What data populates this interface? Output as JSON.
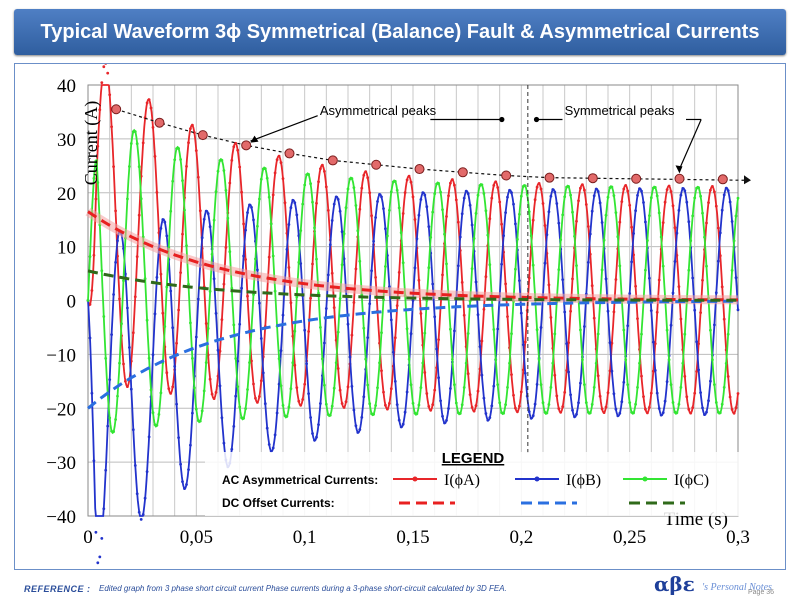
{
  "title": "Typical Waveform 3ϕ Symmetrical (Balance) Fault & Asymmetrical Currents",
  "footer": {
    "reference_label": "REFERENCE :",
    "reference_text": "Edited graph from 3 phase short circuit current Phase currents during a 3-phase short-circuit calculated by 3D FEA.",
    "logo_symbol": "αβε",
    "logo_text": "'s Personal Notes",
    "page_label": "Page 36"
  },
  "colors": {
    "phase_a": "#e8262a",
    "phase_b": "#2233cc",
    "phase_c": "#33e533",
    "dc_a": "#e82020",
    "dc_b": "#2a6fe0",
    "dc_c": "#2f6a1a"
  },
  "chart_data": {
    "type": "line",
    "title": "Typical Waveform 3ϕ Symmetrical (Balance) Fault & Asymmetrical Currents",
    "xlabel": "Time (s)",
    "ylabel": "Current (A)",
    "xlim": [
      0,
      0.3
    ],
    "ylim": [
      -40,
      40
    ],
    "grid": true,
    "x_ticks": [
      "0",
      "0,05",
      "0,1",
      "0,15",
      "0,2",
      "0,25",
      "0,3"
    ],
    "y_ticks": [
      "40",
      "30",
      "20",
      "10",
      "0",
      "−10",
      "−20",
      "−30",
      "−40"
    ],
    "signal": {
      "frequency_hz": 50,
      "symmetrical_amplitude": 21,
      "dc_offsets_initial": [
        16.5,
        -20,
        5.5
      ],
      "dc_decay_time_constant_s": 0.06,
      "ac_decay_extra_amplitude": 10,
      "ac_decay_time_constant_s": 0.055,
      "phase_shifts_deg": [
        0,
        -120,
        120
      ]
    },
    "series": [
      {
        "name": "I(ϕA)",
        "kind": "ac",
        "phase_index": 0
      },
      {
        "name": "I(ϕB)",
        "kind": "ac",
        "phase_index": 1
      },
      {
        "name": "I(ϕC)",
        "kind": "ac",
        "phase_index": 2
      },
      {
        "name": "DC offset A",
        "kind": "dc",
        "phase_index": 0
      },
      {
        "name": "DC offset B",
        "kind": "dc",
        "phase_index": 1
      },
      {
        "name": "DC offset C",
        "kind": "dc",
        "phase_index": 2
      }
    ],
    "asymmetrical_peaks": [
      {
        "t": 0.013,
        "value": 35.5
      },
      {
        "t": 0.033,
        "value": 33.0
      },
      {
        "t": 0.053,
        "value": 30.7
      },
      {
        "t": 0.073,
        "value": 28.8
      },
      {
        "t": 0.093,
        "value": 27.3
      },
      {
        "t": 0.113,
        "value": 26.0
      },
      {
        "t": 0.133,
        "value": 25.2
      },
      {
        "t": 0.153,
        "value": 24.4
      },
      {
        "t": 0.173,
        "value": 23.8
      },
      {
        "t": 0.193,
        "value": 23.2
      }
    ],
    "symmetrical_peaks": [
      {
        "t": 0.213,
        "value": 22.8
      },
      {
        "t": 0.233,
        "value": 22.7
      },
      {
        "t": 0.253,
        "value": 22.6
      },
      {
        "t": 0.273,
        "value": 22.6
      },
      {
        "t": 0.293,
        "value": 22.5
      }
    ],
    "divider_t": 0.203,
    "annotations": {
      "asymmetrical": "Asymmetrical peaks",
      "symmetrical": "Symmetrical peaks"
    },
    "legend": {
      "title": "LEGEND",
      "ac_label": "AC Asymmetrical Currents:",
      "dc_label": "DC Offset Currents:",
      "entries": [
        "I(ϕA)",
        "I(ϕB)",
        "I(ϕC)"
      ]
    }
  }
}
